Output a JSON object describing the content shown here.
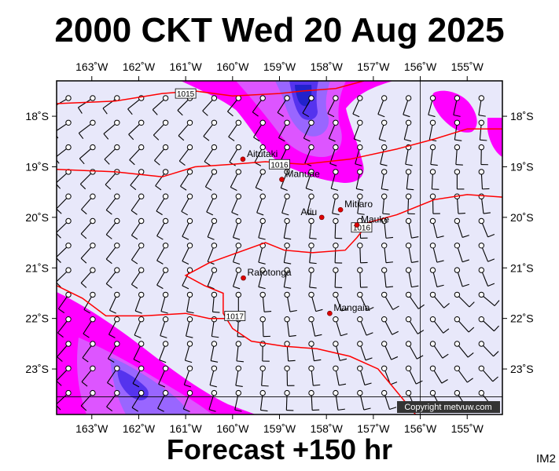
{
  "title": "2000 CKT Wed 20 Aug 2025",
  "subtitle": "Forecast +150 hr",
  "corner_label": "IM2",
  "copyright": "Copyright metvuw.com",
  "map": {
    "lon_range": [
      -163.75,
      -154.25
    ],
    "lat_range": [
      -23.9,
      -17.3
    ],
    "background_color": "#e8e8fa",
    "isobar_color": "#ff0000",
    "rain_colors": [
      "#ff00ff",
      "#dd55ff",
      "#9966ff",
      "#5533ee",
      "#2222cc"
    ],
    "lon_ticks": [
      {
        "value": -163,
        "label": "163˚W"
      },
      {
        "value": -162,
        "label": "162˚W"
      },
      {
        "value": -161,
        "label": "161˚W"
      },
      {
        "value": -160,
        "label": "160˚W"
      },
      {
        "value": -159,
        "label": "159˚W"
      },
      {
        "value": -158,
        "label": "158˚W"
      },
      {
        "value": -157,
        "label": "157˚W"
      },
      {
        "value": -156,
        "label": "156˚W"
      },
      {
        "value": -155,
        "label": "155˚W"
      }
    ],
    "lat_ticks": [
      {
        "value": -18,
        "label": "18˚S"
      },
      {
        "value": -19,
        "label": "19˚S"
      },
      {
        "value": -20,
        "label": "20˚S"
      },
      {
        "value": -21,
        "label": "21˚S"
      },
      {
        "value": -22,
        "label": "22˚S"
      },
      {
        "value": -23,
        "label": "23˚S"
      }
    ],
    "places": [
      {
        "name": "Aitutaki",
        "lon": -159.78,
        "lat": -18.85
      },
      {
        "name": "Manuae",
        "lon": -158.95,
        "lat": -19.25
      },
      {
        "name": "Mitiaro",
        "lon": -157.7,
        "lat": -19.85
      },
      {
        "name": "Atiu",
        "lon": -158.1,
        "lat": -20.0
      },
      {
        "name": "Mauke",
        "lon": -157.35,
        "lat": -20.15
      },
      {
        "name": "Rarotonga",
        "lon": -159.77,
        "lat": -21.2
      },
      {
        "name": "Mangaia",
        "lon": -157.93,
        "lat": -21.9
      }
    ],
    "isobars": [
      {
        "label": "1015",
        "label_at": [
          -161.0,
          -17.55
        ],
        "points": [
          [
            -163.75,
            -17.75
          ],
          [
            -162.5,
            -17.7
          ],
          [
            -161.5,
            -17.55
          ],
          [
            -160.8,
            -17.5
          ],
          [
            -160,
            -17.6
          ],
          [
            -159,
            -17.55
          ],
          [
            -158.5,
            -17.5
          ],
          [
            -157.8,
            -17.45
          ],
          [
            -157.2,
            -17.3
          ]
        ]
      },
      {
        "label": "1016",
        "label_at": [
          -159.0,
          -18.95
        ],
        "points": [
          [
            -163.75,
            -19.05
          ],
          [
            -162.5,
            -19.1
          ],
          [
            -161.5,
            -19.2
          ],
          [
            -160.8,
            -19.0
          ],
          [
            -160,
            -18.95
          ],
          [
            -159.3,
            -18.9
          ],
          [
            -158.5,
            -18.95
          ],
          [
            -157.5,
            -18.85
          ],
          [
            -156.5,
            -18.65
          ],
          [
            -155.7,
            -18.45
          ],
          [
            -155,
            -18.25
          ],
          [
            -154.25,
            -18.25
          ]
        ]
      },
      {
        "label": "1016",
        "label_at": [
          -157.25,
          -20.2
        ],
        "points": [
          [
            -154.25,
            -19.6
          ],
          [
            -155,
            -19.55
          ],
          [
            -155.7,
            -19.65
          ],
          [
            -156.5,
            -19.95
          ],
          [
            -157.1,
            -20.1
          ],
          [
            -157.35,
            -20.4
          ],
          [
            -157.6,
            -20.65
          ],
          [
            -158.3,
            -20.7
          ],
          [
            -158.9,
            -20.65
          ],
          [
            -159.3,
            -20.5
          ],
          [
            -160.5,
            -20.9
          ],
          [
            -161,
            -21.15
          ],
          [
            -160.6,
            -21.35
          ],
          [
            -160.2,
            -21.5
          ],
          [
            -160.2,
            -21.9
          ],
          [
            -160,
            -22.2
          ],
          [
            -159.6,
            -22.45
          ],
          [
            -158.9,
            -22.55
          ],
          [
            -158.2,
            -22.6
          ],
          [
            -157.5,
            -22.75
          ],
          [
            -156.9,
            -23.0
          ],
          [
            -156.5,
            -23.45
          ],
          [
            -156.1,
            -23.9
          ]
        ]
      },
      {
        "label": "1017",
        "label_at": [
          -159.95,
          -21.95
        ],
        "points": [
          [
            -163.75,
            -21.35
          ],
          [
            -163.2,
            -21.6
          ],
          [
            -162.7,
            -21.95
          ],
          [
            -161.9,
            -21.95
          ],
          [
            -161.0,
            -21.9
          ],
          [
            -160.5,
            -22.0
          ],
          [
            -159.9,
            -22.0
          ]
        ]
      }
    ]
  }
}
